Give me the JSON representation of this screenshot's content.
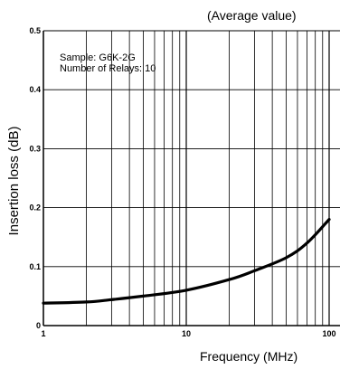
{
  "chart_data": {
    "type": "line",
    "title": "(Average value)",
    "annotation_lines": [
      "Sample: G6K-2G",
      "Number of Relays: 10"
    ],
    "xlabel": "Frequency (MHz)",
    "ylabel": "Insertion loss (dB)",
    "x_scale": "log",
    "xlim": [
      1,
      100
    ],
    "ylim": [
      0,
      0.5
    ],
    "x_tick_labels": [
      "1",
      "10",
      "100"
    ],
    "y_tick_labels": [
      "0",
      "0.1",
      "0.2",
      "0.3",
      "0.4",
      "0.5"
    ],
    "grid": true,
    "series": [
      {
        "x": [
          1,
          2,
          3,
          5,
          10,
          20,
          30,
          50,
          70,
          100
        ],
        "y": [
          0.038,
          0.04,
          0.044,
          0.05,
          0.06,
          0.078,
          0.093,
          0.115,
          0.14,
          0.18
        ]
      }
    ],
    "colors": {
      "line": "#000000",
      "grid": "#000000"
    }
  }
}
